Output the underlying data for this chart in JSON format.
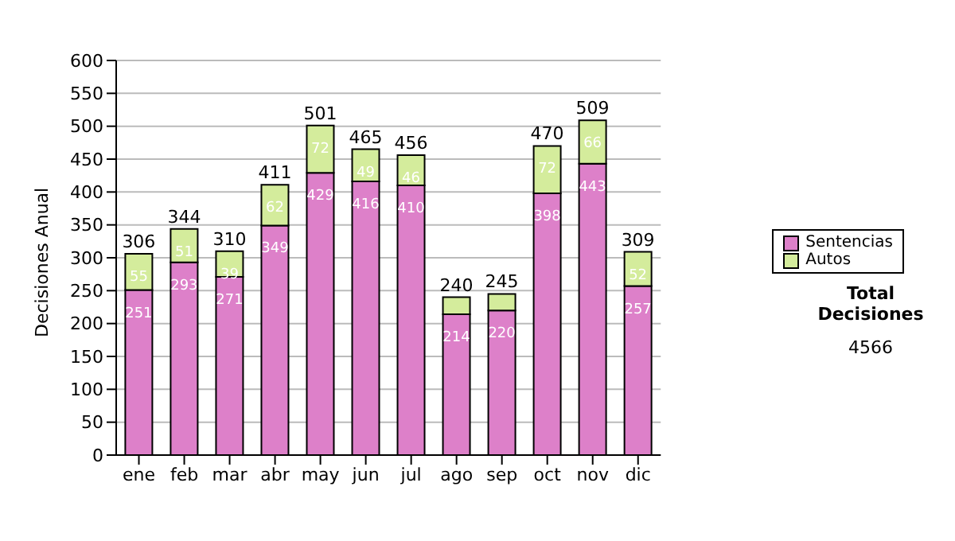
{
  "chart_data": {
    "type": "bar",
    "ylabel": "Decisiones Anual",
    "categories": [
      "ene",
      "feb",
      "mar",
      "abr",
      "may",
      "jun",
      "jul",
      "ago",
      "sep",
      "oct",
      "nov",
      "dic"
    ],
    "series": [
      {
        "name": "Sentencias",
        "color": "#dd80c9",
        "values": [
          251,
          293,
          271,
          349,
          429,
          416,
          410,
          214,
          220,
          398,
          443,
          257
        ],
        "value_labels": [
          "251",
          "293",
          "271",
          "349",
          "429",
          "416",
          "410",
          "214",
          "220",
          "398",
          "443",
          "257"
        ]
      },
      {
        "name": "Autos",
        "color": "#d4ec9c",
        "values": [
          55,
          51,
          39,
          62,
          72,
          49,
          46,
          26,
          25,
          72,
          66,
          52
        ],
        "value_labels": [
          "55",
          "51",
          "39",
          "62",
          "72",
          "49",
          "46",
          null,
          null,
          "72",
          "66",
          "52"
        ]
      }
    ],
    "stacked": true,
    "totals": [
      "306",
      "344",
      "310",
      "411",
      "501",
      "465",
      "456",
      "240",
      "245",
      "470",
      "509",
      "309"
    ],
    "ylim": [
      0,
      600
    ],
    "yticks": [
      0,
      50,
      100,
      150,
      200,
      250,
      300,
      350,
      400,
      450,
      500,
      550,
      600
    ],
    "grid": "y",
    "legend": "right",
    "annotations": [
      "Total Decisiones",
      "4566"
    ]
  }
}
